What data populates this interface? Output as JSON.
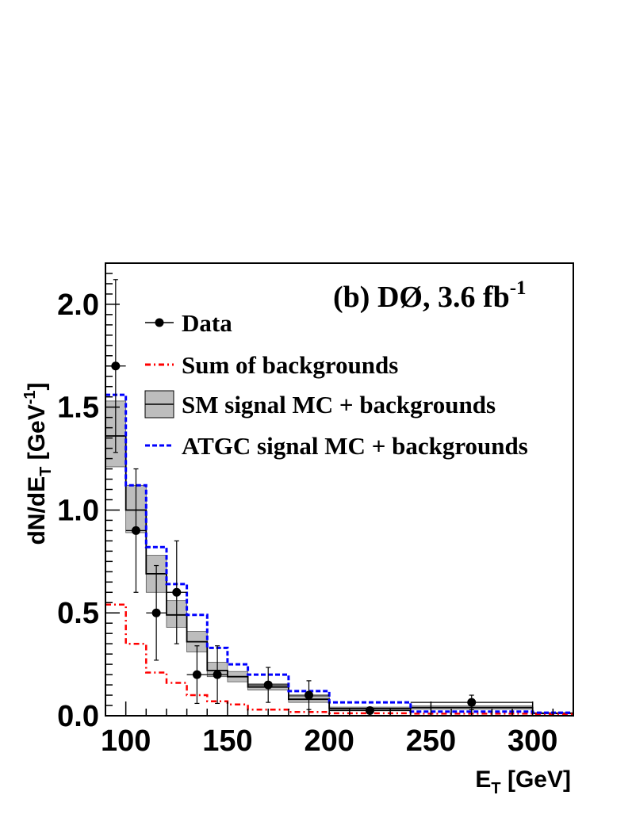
{
  "chart_data": {
    "type": "histogram",
    "title": "(b) DØ, 3.6 fb",
    "title_superscript": "-1",
    "xlabel": "E",
    "xlabel_sub": "T",
    "xlabel_unit": " [GeV]",
    "ylabel_main": "dN/dE",
    "ylabel_sub": "T",
    "ylabel_unit": " [GeV",
    "ylabel_sup": "-1",
    "ylabel_close": "]",
    "xlim": [
      90,
      320
    ],
    "ylim": [
      0,
      2.2
    ],
    "x_major_ticks": [
      100,
      150,
      200,
      250,
      300
    ],
    "x_tick_labels": [
      "100",
      "150",
      "200",
      "250",
      "300"
    ],
    "y_major_ticks": [
      0,
      0.5,
      1.0,
      1.5,
      2.0
    ],
    "y_tick_labels": [
      "0.0",
      "0.5",
      "1.0",
      "1.5",
      "2.0"
    ],
    "bin_edges": [
      90,
      100,
      110,
      120,
      130,
      140,
      150,
      160,
      180,
      200,
      240,
      300,
      320
    ],
    "series": [
      {
        "name": "Data",
        "kind": "points",
        "color": "#000000",
        "x": [
          95,
          105,
          115,
          125,
          135,
          145,
          170,
          190,
          220,
          270
        ],
        "y": [
          1.7,
          0.9,
          0.5,
          0.6,
          0.2,
          0.2,
          0.15,
          0.1,
          0.025,
          0.065
        ],
        "y_err": [
          0.42,
          0.3,
          0.23,
          0.25,
          0.14,
          0.14,
          0.085,
          0.07,
          0.015,
          0.035
        ],
        "x_half_width": [
          5,
          5,
          5,
          5,
          5,
          5,
          10,
          10,
          20,
          30
        ]
      },
      {
        "name": "Sum of backgrounds",
        "kind": "step",
        "color": "#ff0000",
        "values": [
          0.54,
          0.35,
          0.21,
          0.16,
          0.1,
          0.07,
          0.055,
          0.03,
          0.018,
          0.012,
          0.01,
          0.008
        ]
      },
      {
        "name": "SM signal MC + backgrounds",
        "kind": "step_band",
        "color": "#000000",
        "band_color": "#bdbdbd",
        "values": [
          1.36,
          1.0,
          0.69,
          0.49,
          0.36,
          0.22,
          0.19,
          0.14,
          0.08,
          0.035,
          0.04,
          0.012
        ],
        "band_low": [
          1.21,
          0.89,
          0.6,
          0.43,
          0.31,
          0.19,
          0.165,
          0.125,
          0.065,
          0.028,
          0.032,
          0.009
        ],
        "band_high": [
          1.53,
          1.12,
          0.78,
          0.56,
          0.41,
          0.26,
          0.215,
          0.155,
          0.095,
          0.042,
          0.048,
          0.015
        ]
      },
      {
        "name": "ATGC signal MC + backgrounds",
        "kind": "step",
        "color": "#0000ff",
        "values": [
          1.56,
          1.12,
          0.82,
          0.64,
          0.49,
          0.33,
          0.25,
          0.2,
          0.12,
          0.065,
          0.02,
          0.015
        ]
      }
    ],
    "legend": [
      {
        "label": "Data",
        "symbol": "marker"
      },
      {
        "label": "Sum of backgrounds",
        "symbol": "dashdot-red"
      },
      {
        "label": "SM signal MC + backgrounds",
        "symbol": "band"
      },
      {
        "label": "ATGC signal MC + backgrounds",
        "symbol": "dashed-blue"
      }
    ],
    "legend_position": "top-right"
  }
}
